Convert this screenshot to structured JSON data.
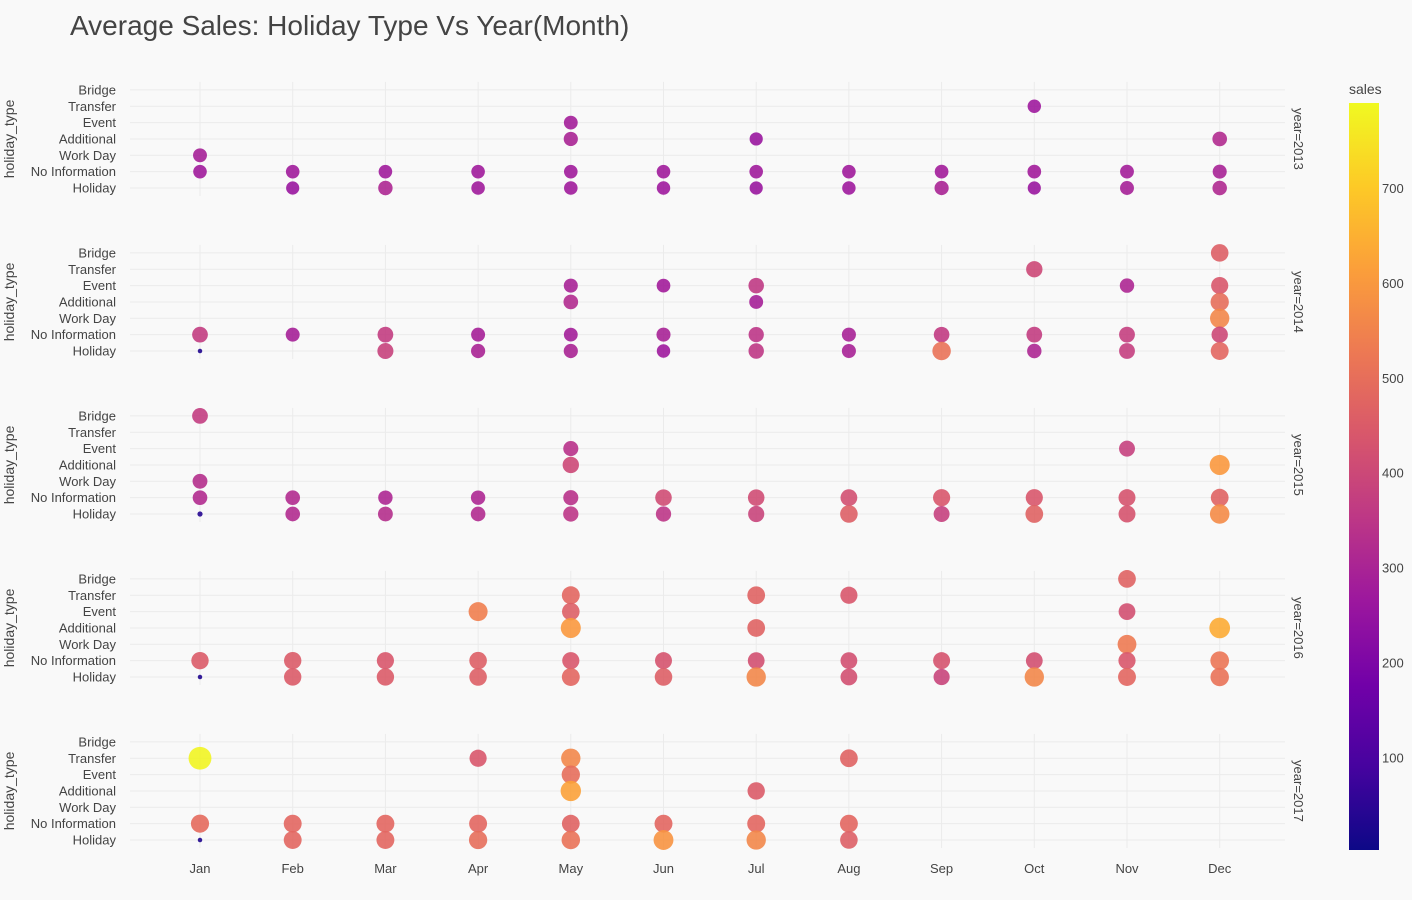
{
  "chart_data": {
    "type": "scatter",
    "title": "Average Sales: Holiday Type Vs Year(Month)",
    "ylabel": "holiday_type",
    "colorbar_title": "sales",
    "colorbar_range": [
      3,
      790
    ],
    "colorbar_ticks": [
      100,
      200,
      300,
      400,
      500,
      600,
      700
    ],
    "colorscale": [
      "#0d0887",
      "#46039f",
      "#7201a8",
      "#9c179e",
      "#bd3786",
      "#d8576b",
      "#ed7953",
      "#fb9f3a",
      "#fdca26",
      "#f0f921"
    ],
    "x_categories": [
      "Jan",
      "Feb",
      "Mar",
      "Apr",
      "May",
      "Jun",
      "Jul",
      "Aug",
      "Sep",
      "Oct",
      "Nov",
      "Dec"
    ],
    "y_categories": [
      "Holiday",
      "No Information",
      "Work Day",
      "Additional",
      "Event",
      "Transfer",
      "Bridge"
    ],
    "facet_labels": [
      "year=2013",
      "year=2014",
      "year=2015",
      "year=2016",
      "year=2017"
    ],
    "facets": [
      {
        "year": "year=2013",
        "points": [
          [
            "Oct",
            "Transfer",
            270
          ],
          [
            "May",
            "Event",
            285
          ],
          [
            "May",
            "Additional",
            300
          ],
          [
            "Jul",
            "Additional",
            260
          ],
          [
            "Dec",
            "Additional",
            320
          ],
          [
            "Jan",
            "Work Day",
            290
          ],
          [
            "Jan",
            "No Information",
            275
          ],
          [
            "Feb",
            "No Information",
            275
          ],
          [
            "Mar",
            "No Information",
            275
          ],
          [
            "Apr",
            "No Information",
            275
          ],
          [
            "May",
            "No Information",
            275
          ],
          [
            "Jun",
            "No Information",
            275
          ],
          [
            "Jul",
            "No Information",
            275
          ],
          [
            "Aug",
            "No Information",
            275
          ],
          [
            "Sep",
            "No Information",
            280
          ],
          [
            "Oct",
            "No Information",
            280
          ],
          [
            "Nov",
            "No Information",
            285
          ],
          [
            "Dec",
            "No Information",
            295
          ],
          [
            "Feb",
            "Holiday",
            260
          ],
          [
            "Mar",
            "Holiday",
            310
          ],
          [
            "Apr",
            "Holiday",
            275
          ],
          [
            "May",
            "Holiday",
            275
          ],
          [
            "Jun",
            "Holiday",
            270
          ],
          [
            "Jul",
            "Holiday",
            260
          ],
          [
            "Aug",
            "Holiday",
            270
          ],
          [
            "Sep",
            "Holiday",
            300
          ],
          [
            "Oct",
            "Holiday",
            260
          ],
          [
            "Nov",
            "Holiday",
            290
          ],
          [
            "Dec",
            "Holiday",
            315
          ]
        ]
      },
      {
        "year": "year=2014",
        "points": [
          [
            "Dec",
            "Bridge",
            460
          ],
          [
            "Oct",
            "Transfer",
            400
          ],
          [
            "May",
            "Event",
            295
          ],
          [
            "Jun",
            "Event",
            280
          ],
          [
            "Jul",
            "Event",
            360
          ],
          [
            "Nov",
            "Event",
            310
          ],
          [
            "Dec",
            "Event",
            440
          ],
          [
            "May",
            "Additional",
            320
          ],
          [
            "Jul",
            "Additional",
            290
          ],
          [
            "Dec",
            "Additional",
            500
          ],
          [
            "Dec",
            "Work Day",
            560
          ],
          [
            "Jan",
            "No Information",
            370
          ],
          [
            "Feb",
            "No Information",
            290
          ],
          [
            "Mar",
            "No Information",
            370
          ],
          [
            "Apr",
            "No Information",
            290
          ],
          [
            "May",
            "No Information",
            285
          ],
          [
            "Jun",
            "No Information",
            295
          ],
          [
            "Jul",
            "No Information",
            350
          ],
          [
            "Aug",
            "No Information",
            295
          ],
          [
            "Sep",
            "No Information",
            365
          ],
          [
            "Oct",
            "No Information",
            370
          ],
          [
            "Nov",
            "No Information",
            375
          ],
          [
            "Dec",
            "No Information",
            400
          ],
          [
            "Jan",
            "Holiday",
            30
          ],
          [
            "Mar",
            "Holiday",
            385
          ],
          [
            "Apr",
            "Holiday",
            300
          ],
          [
            "May",
            "Holiday",
            300
          ],
          [
            "Jun",
            "Holiday",
            270
          ],
          [
            "Jul",
            "Holiday",
            355
          ],
          [
            "Aug",
            "Holiday",
            295
          ],
          [
            "Sep",
            "Holiday",
            510
          ],
          [
            "Oct",
            "Holiday",
            310
          ],
          [
            "Nov",
            "Holiday",
            375
          ],
          [
            "Dec",
            "Holiday",
            480
          ]
        ]
      },
      {
        "year": "year=2015",
        "points": [
          [
            "Jan",
            "Bridge",
            370
          ],
          [
            "May",
            "Event",
            340
          ],
          [
            "Nov",
            "Event",
            380
          ],
          [
            "May",
            "Additional",
            400
          ],
          [
            "Dec",
            "Additional",
            600
          ],
          [
            "Jan",
            "Work Day",
            330
          ],
          [
            "Jan",
            "No Information",
            320
          ],
          [
            "Feb",
            "No Information",
            320
          ],
          [
            "Mar",
            "No Information",
            310
          ],
          [
            "Apr",
            "No Information",
            310
          ],
          [
            "May",
            "No Information",
            340
          ],
          [
            "Jun",
            "No Information",
            410
          ],
          [
            "Jul",
            "No Information",
            410
          ],
          [
            "Aug",
            "No Information",
            420
          ],
          [
            "Sep",
            "No Information",
            440
          ],
          [
            "Oct",
            "No Information",
            440
          ],
          [
            "Nov",
            "No Information",
            430
          ],
          [
            "Dec",
            "No Information",
            470
          ],
          [
            "Jan",
            "Holiday",
            40
          ],
          [
            "Feb",
            "Holiday",
            320
          ],
          [
            "Mar",
            "Holiday",
            330
          ],
          [
            "Apr",
            "Holiday",
            320
          ],
          [
            "May",
            "Holiday",
            350
          ],
          [
            "Jun",
            "Holiday",
            350
          ],
          [
            "Jul",
            "Holiday",
            390
          ],
          [
            "Aug",
            "Holiday",
            460
          ],
          [
            "Sep",
            "Holiday",
            380
          ],
          [
            "Oct",
            "Holiday",
            470
          ],
          [
            "Nov",
            "Holiday",
            430
          ],
          [
            "Dec",
            "Holiday",
            570
          ]
        ]
      },
      {
        "year": "year=2016",
        "points": [
          [
            "Nov",
            "Bridge",
            470
          ],
          [
            "May",
            "Transfer",
            480
          ],
          [
            "Jul",
            "Transfer",
            470
          ],
          [
            "Aug",
            "Transfer",
            440
          ],
          [
            "Apr",
            "Event",
            540
          ],
          [
            "May",
            "Event",
            460
          ],
          [
            "Nov",
            "Event",
            420
          ],
          [
            "May",
            "Additional",
            600
          ],
          [
            "Jul",
            "Additional",
            470
          ],
          [
            "Dec",
            "Additional",
            640
          ],
          [
            "Nov",
            "Work Day",
            530
          ],
          [
            "Jan",
            "No Information",
            450
          ],
          [
            "Feb",
            "No Information",
            450
          ],
          [
            "Mar",
            "No Information",
            440
          ],
          [
            "Apr",
            "No Information",
            460
          ],
          [
            "May",
            "No Information",
            440
          ],
          [
            "Jun",
            "No Information",
            430
          ],
          [
            "Jul",
            "No Information",
            420
          ],
          [
            "Aug",
            "No Information",
            420
          ],
          [
            "Sep",
            "No Information",
            430
          ],
          [
            "Oct",
            "No Information",
            420
          ],
          [
            "Nov",
            "No Information",
            440
          ],
          [
            "Dec",
            "No Information",
            520
          ],
          [
            "Jan",
            "Holiday",
            30
          ],
          [
            "Feb",
            "Holiday",
            450
          ],
          [
            "Mar",
            "Holiday",
            450
          ],
          [
            "Apr",
            "Holiday",
            460
          ],
          [
            "May",
            "Holiday",
            480
          ],
          [
            "Jun",
            "Holiday",
            460
          ],
          [
            "Jul",
            "Holiday",
            560
          ],
          [
            "Aug",
            "Holiday",
            420
          ],
          [
            "Sep",
            "Holiday",
            390
          ],
          [
            "Oct",
            "Holiday",
            560
          ],
          [
            "Nov",
            "Holiday",
            480
          ],
          [
            "Dec",
            "Holiday",
            510
          ]
        ]
      },
      {
        "year": "year=2017",
        "points": [
          [
            "Jan",
            "Transfer",
            780
          ],
          [
            "Apr",
            "Transfer",
            440
          ],
          [
            "May",
            "Transfer",
            560
          ],
          [
            "Aug",
            "Transfer",
            470
          ],
          [
            "May",
            "Event",
            500
          ],
          [
            "May",
            "Additional",
            620
          ],
          [
            "Jul",
            "Additional",
            450
          ],
          [
            "Jan",
            "No Information",
            490
          ],
          [
            "Feb",
            "No Information",
            480
          ],
          [
            "Mar",
            "No Information",
            480
          ],
          [
            "Apr",
            "No Information",
            480
          ],
          [
            "May",
            "No Information",
            470
          ],
          [
            "Jun",
            "No Information",
            480
          ],
          [
            "Jul",
            "No Information",
            480
          ],
          [
            "Aug",
            "No Information",
            480
          ],
          [
            "Jan",
            "Holiday",
            30
          ],
          [
            "Feb",
            "Holiday",
            480
          ],
          [
            "Mar",
            "Holiday",
            480
          ],
          [
            "Apr",
            "Holiday",
            500
          ],
          [
            "May",
            "Holiday",
            510
          ],
          [
            "Jun",
            "Holiday",
            590
          ],
          [
            "Jul",
            "Holiday",
            560
          ],
          [
            "Aug",
            "Holiday",
            460
          ]
        ]
      }
    ]
  }
}
